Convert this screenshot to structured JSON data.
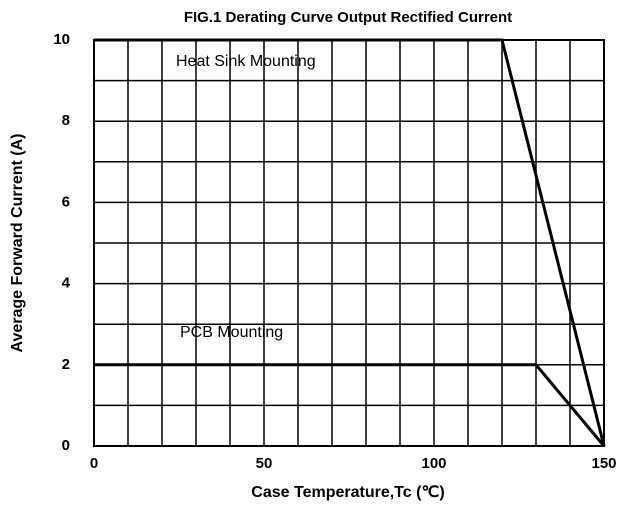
{
  "chart_data": {
    "type": "line",
    "title": "FIG.1 Derating Curve Output Rectified Current",
    "x_label": "Case Temperature,Tc (℃)",
    "y_label": "Average Forward Current (A)",
    "annotations": [
      "Heat Sink Mounting",
      "PCB Mounting"
    ],
    "series": [
      {
        "name": "Heat Sink Mounting",
        "color": "#000000",
        "x": [
          0,
          120,
          150
        ],
        "values": [
          10,
          10,
          0
        ]
      },
      {
        "name": "PCB Mounting",
        "color": "#000000",
        "x": [
          0,
          130,
          150
        ],
        "values": [
          2,
          2,
          0
        ]
      }
    ],
    "xlim": [
      0,
      150
    ],
    "ylim": [
      0,
      10
    ],
    "xticks": [
      0,
      50,
      100,
      150
    ],
    "yticks": [
      0,
      2,
      4,
      6,
      8,
      10
    ],
    "xgrid": [
      10,
      20,
      30,
      40,
      50,
      60,
      70,
      80,
      90,
      100,
      110,
      120,
      130,
      140
    ],
    "ygrid": [
      1,
      2,
      3,
      4,
      5,
      6,
      7,
      8,
      9
    ],
    "grid": true
  }
}
